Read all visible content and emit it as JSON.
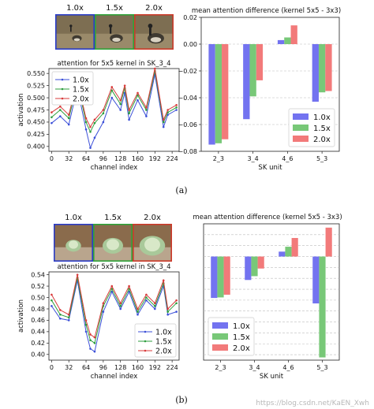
{
  "panels": [
    {
      "label": "(a)",
      "thumb_scales": [
        "1.0x",
        "1.5x",
        "2.0x"
      ],
      "thumb_colors": [
        "#2a3cc8",
        "#2fa33a",
        "#cc3a2a"
      ],
      "thumb_subject": "goose",
      "line_chart": {
        "type": "line",
        "title": "attention for 5x5 kernel in SK_3_4",
        "xlabel": "channel index",
        "ylabel": "activation",
        "ylim": [
          0.39,
          0.56
        ],
        "xlim": [
          -5,
          237
        ],
        "yticks": [
          "0.400",
          "0.425",
          "0.450",
          "0.475",
          "0.500",
          "0.525",
          "0.550"
        ],
        "ytick_values": [
          0.4,
          0.425,
          0.45,
          0.475,
          0.5,
          0.525,
          0.55
        ],
        "xticks": [
          "0",
          "32",
          "64",
          "96",
          "128",
          "160",
          "192",
          "224"
        ],
        "xtick_values": [
          0,
          32,
          64,
          96,
          128,
          160,
          192,
          224
        ],
        "x": [
          0,
          16,
          32,
          48,
          64,
          72,
          80,
          96,
          112,
          128,
          136,
          144,
          160,
          176,
          192,
          208,
          216,
          232
        ],
        "series": [
          {
            "name": "1.0x",
            "color": "#3b4fd8",
            "values": [
              0.448,
              0.462,
              0.445,
              0.52,
              0.435,
              0.397,
              0.418,
              0.45,
              0.5,
              0.475,
              0.51,
              0.455,
              0.495,
              0.462,
              0.548,
              0.44,
              0.465,
              0.475
            ]
          },
          {
            "name": "1.5x",
            "color": "#2e9e3e",
            "values": [
              0.46,
              0.475,
              0.458,
              0.53,
              0.45,
              0.43,
              0.448,
              0.468,
              0.515,
              0.487,
              0.52,
              0.468,
              0.505,
              0.475,
              0.555,
              0.45,
              0.47,
              0.48
            ]
          },
          {
            "name": "2.0x",
            "color": "#d83b3b",
            "values": [
              0.47,
              0.482,
              0.465,
              0.535,
              0.458,
              0.44,
              0.455,
              0.475,
              0.522,
              0.495,
              0.525,
              0.475,
              0.51,
              0.48,
              0.56,
              0.455,
              0.475,
              0.485
            ]
          }
        ],
        "legend": "upper-left"
      },
      "bar_chart": {
        "type": "bar",
        "title": "mean attention difference (kernel 5x5 - 3x3)",
        "xlabel": "SK unit",
        "categories": [
          "2_3",
          "3_4",
          "4_6",
          "5_3"
        ],
        "ylim": [
          -0.08,
          0.02
        ],
        "yticks": [
          "−0.08",
          "−0.06",
          "−0.04",
          "−0.02",
          "0.00",
          "0.02"
        ],
        "ytick_values": [
          -0.08,
          -0.06,
          -0.04,
          -0.02,
          0.0,
          0.02
        ],
        "series": [
          {
            "name": "1.0x",
            "color": "#7373f0",
            "values": [
              -0.075,
              -0.056,
              0.003,
              -0.043
            ]
          },
          {
            "name": "1.5x",
            "color": "#78c878",
            "values": [
              -0.074,
              -0.039,
              0.005,
              -0.036
            ]
          },
          {
            "name": "2.0x",
            "color": "#f27a7a",
            "values": [
              -0.071,
              -0.027,
              0.014,
              -0.035
            ]
          }
        ],
        "legend": "lower-right"
      }
    },
    {
      "label": "(b)",
      "thumb_scales": [
        "1.0x",
        "1.5x",
        "2.0x"
      ],
      "thumb_colors": [
        "#2a3cc8",
        "#2fa33a",
        "#cc3a2a"
      ],
      "thumb_subject": "cabbage",
      "line_chart": {
        "type": "line",
        "title": "attention for 5x5 kernel in SK_3_4",
        "xlabel": "channel index",
        "ylabel": "activation",
        "ylim": [
          0.39,
          0.545
        ],
        "xlim": [
          -5,
          237
        ],
        "yticks": [
          "0.40",
          "0.42",
          "0.44",
          "0.46",
          "0.48",
          "0.50",
          "0.52",
          "0.54"
        ],
        "ytick_values": [
          0.4,
          0.42,
          0.44,
          0.46,
          0.48,
          0.5,
          0.52,
          0.54
        ],
        "xticks": [
          "0",
          "32",
          "64",
          "96",
          "128",
          "160",
          "192",
          "224"
        ],
        "xtick_values": [
          0,
          32,
          64,
          96,
          128,
          160,
          192,
          224
        ],
        "x": [
          0,
          16,
          32,
          48,
          64,
          72,
          80,
          96,
          112,
          128,
          144,
          160,
          176,
          192,
          208,
          216,
          232
        ],
        "series": [
          {
            "name": "1.0x",
            "color": "#3b4fd8",
            "values": [
              0.485,
              0.463,
              0.46,
              0.53,
              0.44,
              0.41,
              0.405,
              0.475,
              0.51,
              0.48,
              0.51,
              0.47,
              0.495,
              0.48,
              0.52,
              0.47,
              0.475
            ]
          },
          {
            "name": "1.5x",
            "color": "#2e9e3e",
            "values": [
              0.495,
              0.47,
              0.465,
              0.535,
              0.452,
              0.425,
              0.42,
              0.485,
              0.515,
              0.485,
              0.515,
              0.475,
              0.5,
              0.485,
              0.525,
              0.475,
              0.49
            ]
          },
          {
            "name": "2.0x",
            "color": "#d83b3b",
            "values": [
              0.505,
              0.478,
              0.47,
              0.54,
              0.46,
              0.435,
              0.43,
              0.49,
              0.52,
              0.49,
              0.52,
              0.48,
              0.505,
              0.49,
              0.53,
              0.48,
              0.495
            ]
          }
        ],
        "legend": "lower-right"
      },
      "bar_chart": {
        "type": "bar",
        "title": "mean attention difference (kernel 5x5 - 3x3)",
        "xlabel": "SK unit",
        "categories": [
          "2_3",
          "3_4",
          "4_6",
          "5_3"
        ],
        "ylim": [
          -0.19,
          0.06
        ],
        "yticks": [],
        "ytick_values": [],
        "series": [
          {
            "name": "1.0x",
            "color": "#7373f0",
            "values": [
              -0.076,
              -0.043,
              0.009,
              -0.086
            ]
          },
          {
            "name": "1.5x",
            "color": "#78c878",
            "values": [
              -0.075,
              -0.036,
              0.018,
              -0.185
            ]
          },
          {
            "name": "2.0x",
            "color": "#f27a7a",
            "values": [
              -0.07,
              -0.022,
              0.034,
              0.053
            ]
          }
        ],
        "legend": "lower-left"
      }
    }
  ],
  "watermark": "https://blog.csdn.net/KaEN_Xwh"
}
